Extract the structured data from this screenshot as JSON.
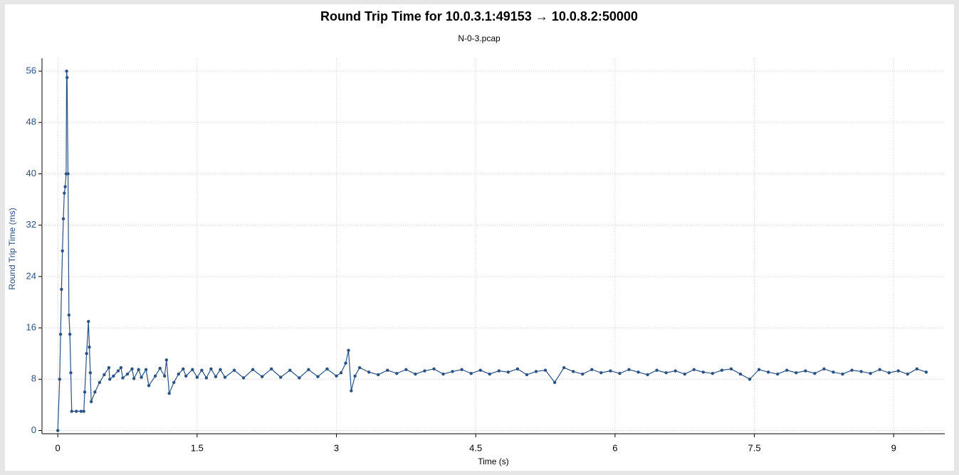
{
  "chart_data": {
    "type": "line",
    "title": "Round Trip Time for 10.0.3.1:49153 → 10.0.8.2:50000",
    "subtitle": "N-0-3.pcap",
    "x_label": "Time (s)",
    "y_label": "Round Trip Time (ms)",
    "grid": true,
    "xlim": [
      -0.17,
      9.55
    ],
    "ylim": [
      -0.5,
      58
    ],
    "xticks": [
      0,
      1.5,
      3,
      4.5,
      6,
      7.5,
      9
    ],
    "yticks": [
      0,
      8,
      16,
      24,
      32,
      40,
      48,
      56
    ],
    "x": [
      0,
      0.02,
      0.03,
      0.04,
      0.05,
      0.06,
      0.07,
      0.08,
      0.09,
      0.095,
      0.1,
      0.11,
      0.12,
      0.13,
      0.14,
      0.15,
      0.2,
      0.25,
      0.28,
      0.29,
      0.31,
      0.33,
      0.34,
      0.35,
      0.36,
      0.4,
      0.45,
      0.5,
      0.55,
      0.56,
      0.6,
      0.65,
      0.68,
      0.7,
      0.75,
      0.8,
      0.82,
      0.87,
      0.9,
      0.95,
      0.98,
      1.05,
      1.1,
      1.15,
      1.17,
      1.2,
      1.25,
      1.3,
      1.35,
      1.38,
      1.45,
      1.5,
      1.55,
      1.6,
      1.65,
      1.7,
      1.75,
      1.8,
      1.9,
      2.0,
      2.1,
      2.2,
      2.3,
      2.4,
      2.5,
      2.6,
      2.7,
      2.8,
      2.9,
      3.0,
      3.05,
      3.1,
      3.13,
      3.16,
      3.2,
      3.25,
      3.35,
      3.45,
      3.55,
      3.65,
      3.75,
      3.85,
      3.95,
      4.05,
      4.15,
      4.25,
      4.35,
      4.45,
      4.55,
      4.65,
      4.75,
      4.85,
      4.95,
      5.05,
      5.15,
      5.25,
      5.35,
      5.45,
      5.55,
      5.65,
      5.75,
      5.85,
      5.95,
      6.05,
      6.15,
      6.25,
      6.35,
      6.45,
      6.55,
      6.65,
      6.75,
      6.85,
      6.95,
      7.05,
      7.15,
      7.25,
      7.35,
      7.45,
      7.55,
      7.65,
      7.75,
      7.85,
      7.95,
      8.05,
      8.15,
      8.25,
      8.35,
      8.45,
      8.55,
      8.65,
      8.75,
      8.85,
      8.95,
      9.05,
      9.15,
      9.25,
      9.35
    ],
    "series": [
      {
        "name": "Round Trip Time",
        "color": "#2a5285",
        "values": [
          0,
          8,
          15,
          22,
          28,
          33,
          37,
          38,
          40,
          56,
          55,
          40,
          18,
          15,
          9,
          3,
          3,
          3,
          3,
          6,
          12,
          17,
          13,
          9,
          4.5,
          6,
          7.5,
          8.7,
          9.8,
          8,
          8.5,
          9.3,
          9.8,
          8.2,
          8.8,
          9.6,
          8.1,
          9.5,
          8.3,
          9.5,
          7,
          8.5,
          9.7,
          8.5,
          11,
          5.8,
          7.5,
          8.8,
          9.6,
          8.5,
          9.5,
          8.3,
          9.4,
          8.2,
          9.6,
          8.4,
          9.5,
          8.3,
          9.4,
          8.2,
          9.5,
          8.4,
          9.6,
          8.3,
          9.4,
          8.2,
          9.5,
          8.4,
          9.6,
          8.5,
          9,
          10.5,
          12.5,
          6.2,
          8.5,
          9.8,
          9.1,
          8.7,
          9.4,
          8.9,
          9.5,
          8.8,
          9.3,
          9.6,
          8.8,
          9.2,
          9.5,
          8.9,
          9.4,
          8.8,
          9.3,
          9.1,
          9.6,
          8.7,
          9.2,
          9.4,
          7.5,
          9.8,
          9.2,
          8.8,
          9.5,
          9.0,
          9.3,
          8.9,
          9.5,
          9.1,
          8.7,
          9.4,
          9.0,
          9.3,
          8.8,
          9.5,
          9.1,
          8.9,
          9.4,
          9.6,
          8.8,
          8,
          9.5,
          9.1,
          8.8,
          9.4,
          9.0,
          9.3,
          8.9,
          9.6,
          9.1,
          8.8,
          9.4,
          9.2,
          8.9,
          9.5,
          9.0,
          9.3,
          8.8,
          9.6,
          9.1
        ]
      }
    ]
  }
}
